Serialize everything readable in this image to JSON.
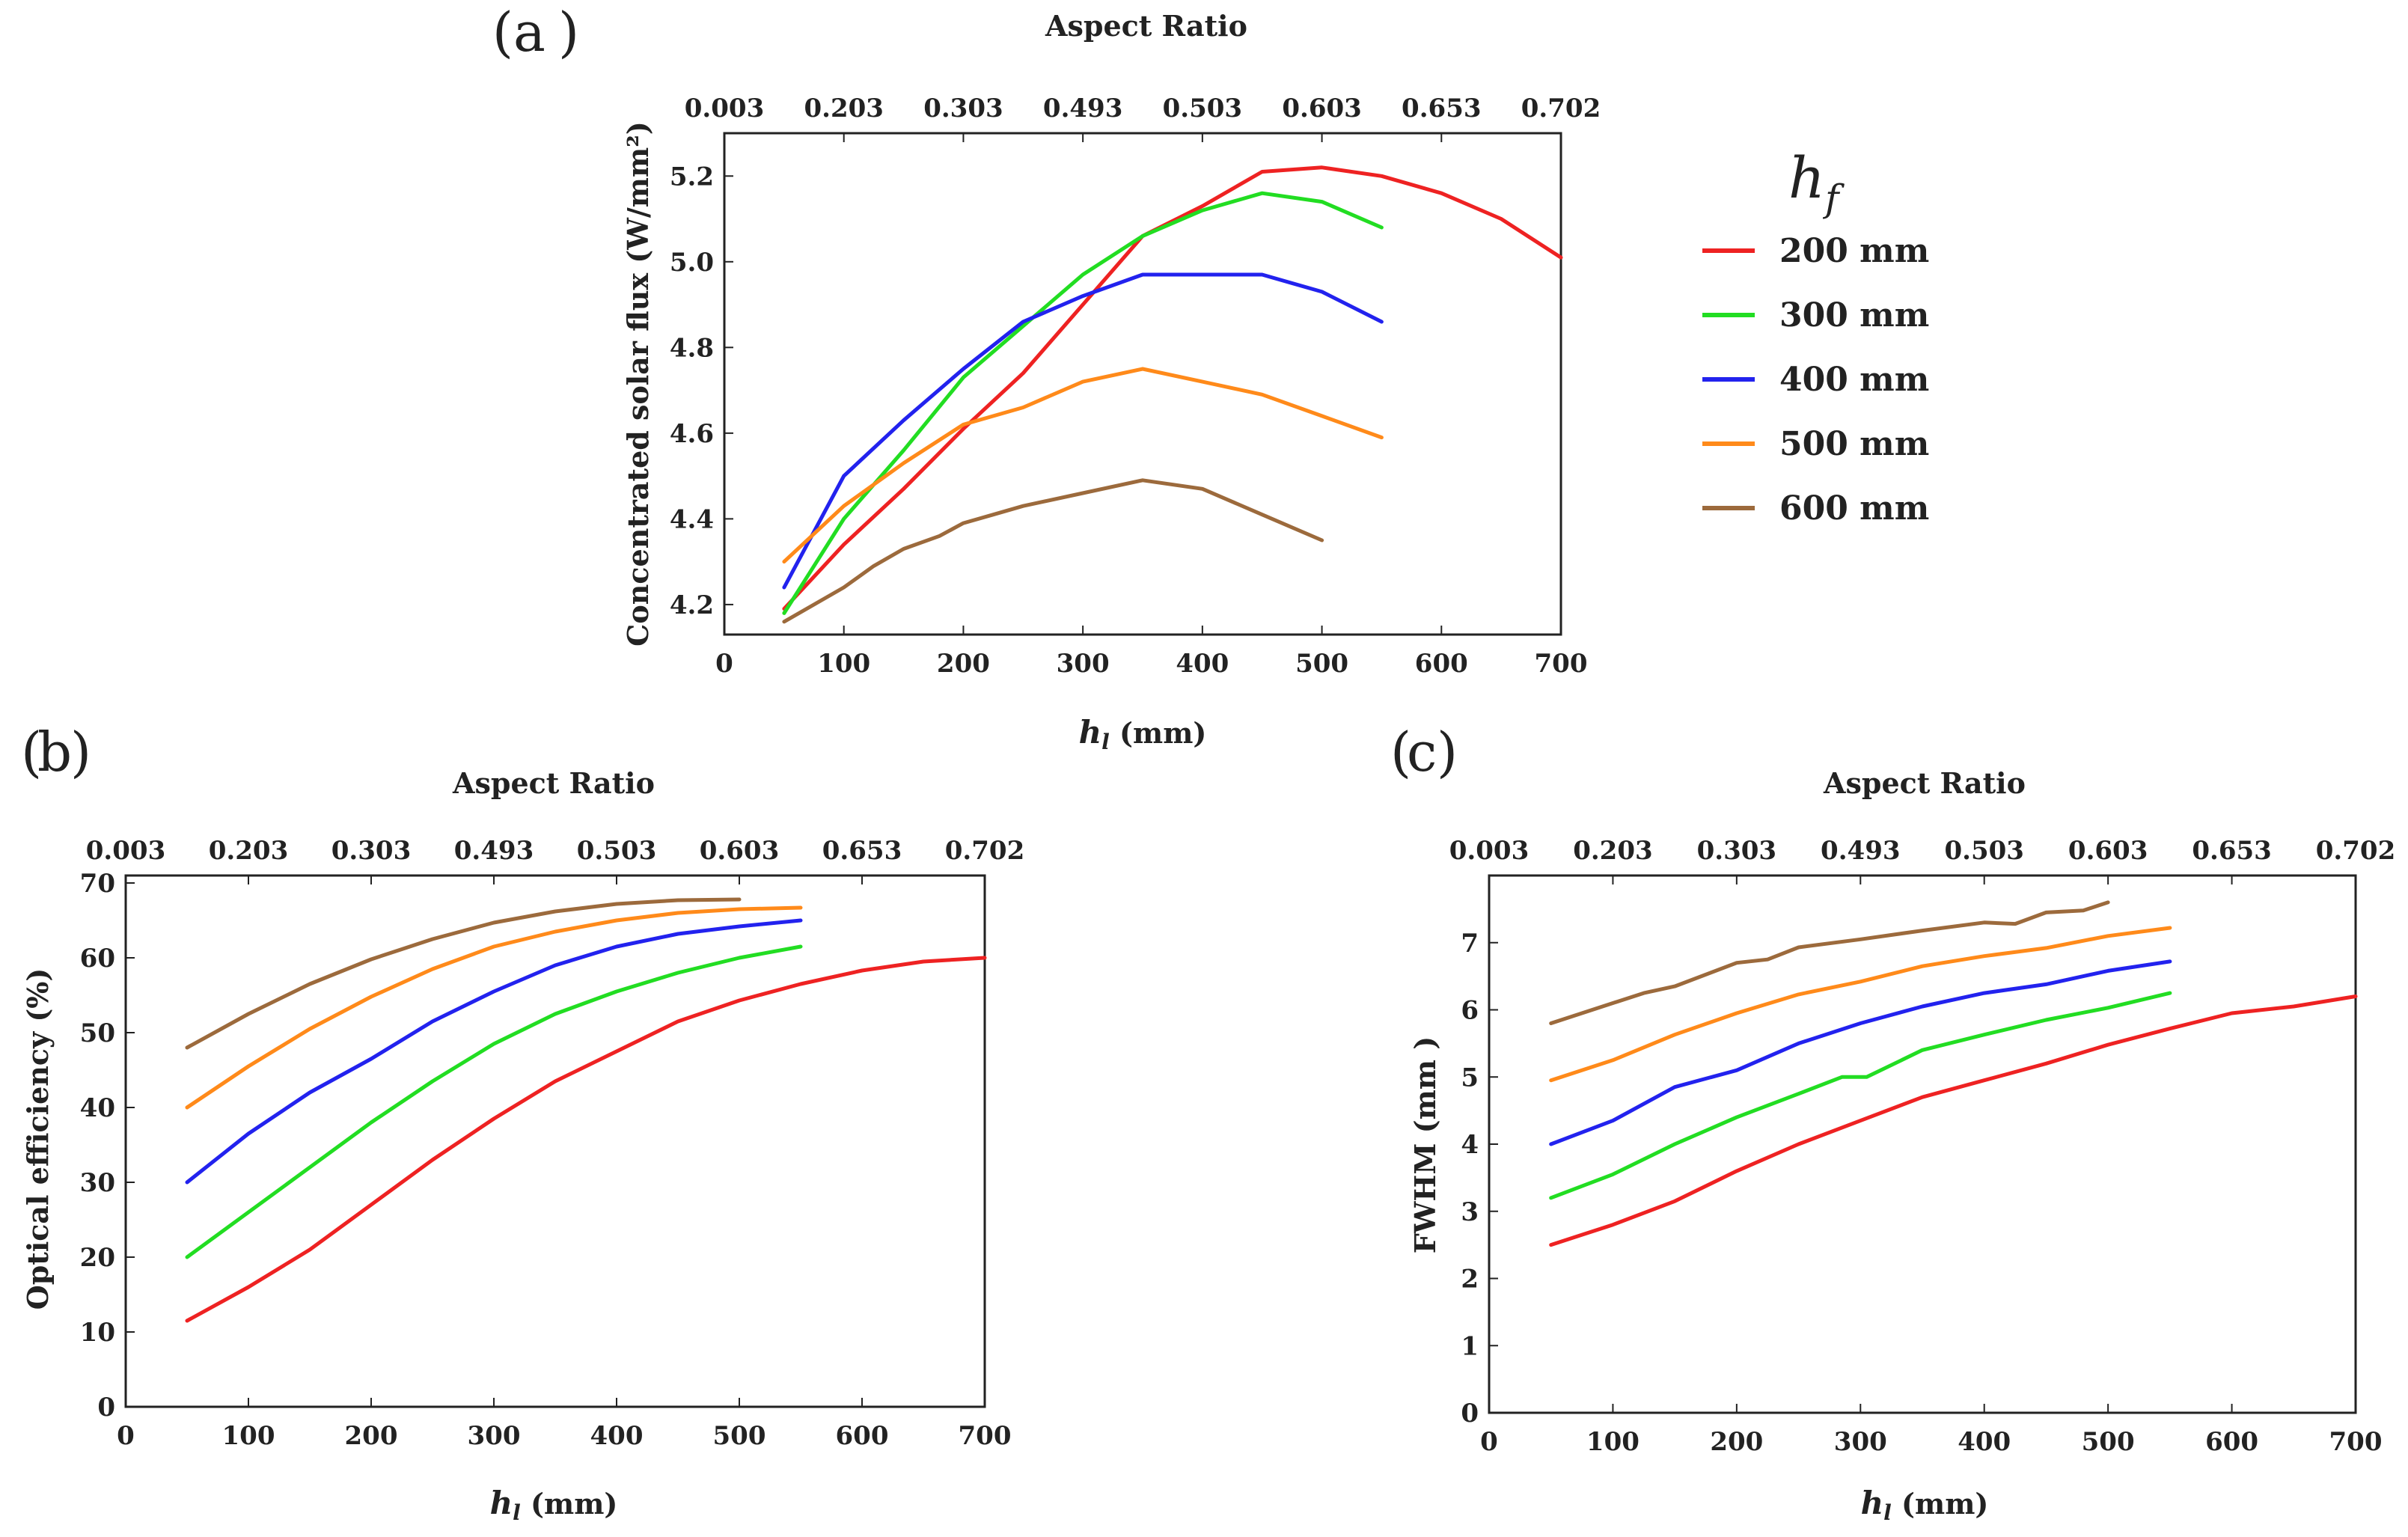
{
  "legend": {
    "title": "h",
    "title_sub": "f",
    "entries": [
      {
        "label": "200 mm",
        "color": "#ee2222"
      },
      {
        "label": "300 mm",
        "color": "#22dd22"
      },
      {
        "label": "400 mm",
        "color": "#2222ee"
      },
      {
        "label": "500 mm",
        "color": "#ff8a1a"
      },
      {
        "label": "600 mm",
        "color": "#9c6a3c"
      }
    ]
  },
  "chart_data": [
    {
      "id": "a",
      "type": "line",
      "panel_label": "(a)",
      "panel_letter": "a",
      "xlabel_main": "h",
      "xlabel_sub": "l",
      "xlabel_rest": " (mm)",
      "ylabel": "Concentrated solar flux (W/mm²)",
      "top_axis_label": "Aspect Ratio",
      "top_ticks": [
        "0.003",
        "0.203",
        "0.303",
        "0.493",
        "0.503",
        "0.603",
        "0.653",
        "0.702"
      ],
      "xlim": [
        0,
        700
      ],
      "ylim": [
        4.13,
        5.3
      ],
      "xticks": [
        0,
        100,
        200,
        300,
        400,
        500,
        600,
        700
      ],
      "yticks": [
        "4.2",
        "4.4",
        "4.6",
        "4.8",
        "5.0",
        "5.2"
      ],
      "grid": false,
      "series": [
        {
          "name": "200 mm",
          "x": [
            50,
            100,
            150,
            200,
            250,
            300,
            350,
            400,
            450,
            500,
            550,
            600,
            650,
            700
          ],
          "y": [
            4.19,
            4.34,
            4.47,
            4.61,
            4.74,
            4.9,
            5.06,
            5.13,
            5.21,
            5.22,
            5.2,
            5.16,
            5.1,
            5.01
          ]
        },
        {
          "name": "300 mm",
          "x": [
            50,
            100,
            150,
            200,
            250,
            300,
            350,
            400,
            450,
            500,
            550
          ],
          "y": [
            4.18,
            4.4,
            4.56,
            4.73,
            4.85,
            4.97,
            5.06,
            5.12,
            5.16,
            5.14,
            5.08
          ]
        },
        {
          "name": "400 mm",
          "x": [
            50,
            100,
            150,
            200,
            250,
            300,
            350,
            400,
            450,
            500,
            550
          ],
          "y": [
            4.24,
            4.5,
            4.63,
            4.75,
            4.86,
            4.92,
            4.97,
            4.97,
            4.97,
            4.93,
            4.86
          ]
        },
        {
          "name": "500 mm",
          "x": [
            50,
            100,
            150,
            200,
            250,
            300,
            350,
            400,
            450,
            500,
            550
          ],
          "y": [
            4.3,
            4.43,
            4.53,
            4.62,
            4.66,
            4.72,
            4.75,
            4.72,
            4.69,
            4.64,
            4.59
          ]
        },
        {
          "name": "600 mm",
          "x": [
            50,
            100,
            125,
            150,
            180,
            200,
            225,
            250,
            300,
            350,
            400,
            450,
            500
          ],
          "y": [
            4.16,
            4.24,
            4.29,
            4.33,
            4.36,
            4.39,
            4.41,
            4.43,
            4.46,
            4.49,
            4.47,
            4.41,
            4.35
          ]
        }
      ]
    },
    {
      "id": "b",
      "type": "line",
      "panel_label": "(b)",
      "panel_letter": "b",
      "xlabel_main": "h",
      "xlabel_sub": "l",
      "xlabel_rest": " (mm)",
      "ylabel": "Optical efficiency (%)",
      "top_axis_label": "Aspect Ratio",
      "top_ticks": [
        "0.003",
        "0.203",
        "0.303",
        "0.493",
        "0.503",
        "0.603",
        "0.653",
        "0.702"
      ],
      "xlim": [
        0,
        700
      ],
      "ylim": [
        0,
        71
      ],
      "xticks": [
        0,
        100,
        200,
        300,
        400,
        500,
        600,
        700
      ],
      "yticks": [
        "0",
        "10",
        "20",
        "30",
        "40",
        "50",
        "60",
        "70"
      ],
      "grid": false,
      "series": [
        {
          "name": "200 mm",
          "x": [
            50,
            100,
            150,
            200,
            250,
            300,
            350,
            400,
            450,
            500,
            550,
            600,
            650,
            700
          ],
          "y": [
            11.5,
            16,
            21,
            27,
            33,
            38.5,
            43.5,
            47.5,
            51.5,
            54.3,
            56.5,
            58.3,
            59.5,
            60
          ]
        },
        {
          "name": "300 mm",
          "x": [
            50,
            100,
            150,
            200,
            250,
            300,
            350,
            400,
            450,
            500,
            550
          ],
          "y": [
            20,
            26,
            32,
            38,
            43.5,
            48.5,
            52.5,
            55.5,
            58,
            60,
            61.5
          ]
        },
        {
          "name": "400 mm",
          "x": [
            50,
            100,
            150,
            200,
            250,
            300,
            350,
            400,
            450,
            500,
            550
          ],
          "y": [
            30,
            36.5,
            42,
            46.5,
            51.5,
            55.5,
            59,
            61.5,
            63.2,
            64.2,
            65
          ]
        },
        {
          "name": "500 mm",
          "x": [
            50,
            100,
            150,
            200,
            250,
            300,
            350,
            400,
            450,
            500,
            550
          ],
          "y": [
            40,
            45.5,
            50.5,
            54.8,
            58.5,
            61.5,
            63.5,
            65,
            66,
            66.5,
            66.7
          ]
        },
        {
          "name": "600 mm",
          "x": [
            50,
            100,
            150,
            200,
            250,
            300,
            350,
            400,
            450,
            500
          ],
          "y": [
            48,
            52.5,
            56.5,
            59.8,
            62.5,
            64.7,
            66.2,
            67.2,
            67.7,
            67.8
          ]
        }
      ]
    },
    {
      "id": "c",
      "type": "line",
      "panel_label": "(c)",
      "panel_letter": "c",
      "xlabel_main": "h",
      "xlabel_sub": "l",
      "xlabel_rest": " (mm)",
      "ylabel": "FWHM  (mm )",
      "top_axis_label": "Aspect Ratio",
      "top_ticks": [
        "0.003",
        "0.203",
        "0.303",
        "0.493",
        "0.503",
        "0.603",
        "0.653",
        "0.702"
      ],
      "xlim": [
        0,
        700
      ],
      "ylim": [
        0,
        8
      ],
      "xticks": [
        0,
        100,
        200,
        300,
        400,
        500,
        600,
        700
      ],
      "yticks": [
        "0",
        "1",
        "2",
        "3",
        "4",
        "5",
        "6",
        "7"
      ],
      "grid": false,
      "series": [
        {
          "name": "200 mm",
          "x": [
            50,
            100,
            150,
            200,
            250,
            300,
            350,
            400,
            450,
            500,
            550,
            600,
            650,
            700
          ],
          "y": [
            2.5,
            2.8,
            3.15,
            3.6,
            4.0,
            4.35,
            4.7,
            4.95,
            5.2,
            5.48,
            5.72,
            5.95,
            6.05,
            6.2
          ]
        },
        {
          "name": "300 mm",
          "x": [
            50,
            100,
            150,
            200,
            250,
            285,
            305,
            350,
            400,
            450,
            500,
            550
          ],
          "y": [
            3.2,
            3.55,
            4.0,
            4.4,
            4.75,
            5.0,
            5.0,
            5.4,
            5.63,
            5.85,
            6.03,
            6.25
          ]
        },
        {
          "name": "400 mm",
          "x": [
            50,
            100,
            150,
            200,
            250,
            300,
            350,
            400,
            450,
            500,
            550
          ],
          "y": [
            4.0,
            4.35,
            4.85,
            5.1,
            5.5,
            5.8,
            6.05,
            6.25,
            6.38,
            6.58,
            6.72
          ]
        },
        {
          "name": "500 mm",
          "x": [
            50,
            100,
            150,
            200,
            250,
            300,
            350,
            400,
            450,
            500,
            550
          ],
          "y": [
            4.95,
            5.25,
            5.63,
            5.95,
            6.23,
            6.42,
            6.65,
            6.8,
            6.92,
            7.1,
            7.22
          ]
        },
        {
          "name": "600 mm",
          "x": [
            50,
            100,
            125,
            150,
            200,
            225,
            250,
            300,
            350,
            400,
            425,
            450,
            480,
            500
          ],
          "y": [
            5.8,
            6.1,
            6.25,
            6.35,
            6.7,
            6.75,
            6.93,
            7.05,
            7.18,
            7.3,
            7.28,
            7.45,
            7.48,
            7.6
          ]
        }
      ]
    }
  ]
}
